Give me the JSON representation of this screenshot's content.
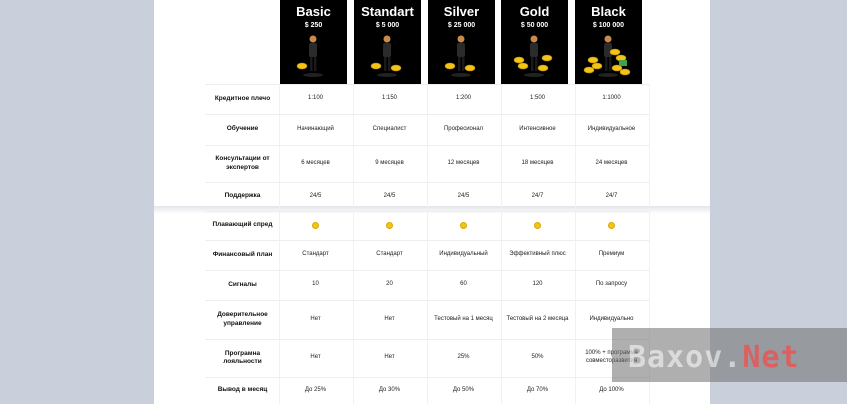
{
  "plans": [
    {
      "name": "Basic",
      "price": "$ 250"
    },
    {
      "name": "Standart",
      "price": "$ 5 000"
    },
    {
      "name": "Silver",
      "price": "$ 25 000"
    },
    {
      "name": "Gold",
      "price": "$ 50 000"
    },
    {
      "name": "Black",
      "price": "$ 100 000"
    }
  ],
  "rows": [
    {
      "label": "Кредитное плечо",
      "values": [
        "1:100",
        "1:150",
        "1:200",
        "1:500",
        "1:1000"
      ]
    },
    {
      "label": "Обучение",
      "values": [
        "Начинающий",
        "Специалист",
        "Професионал",
        "Интенсивное",
        "Индивидуальное"
      ]
    },
    {
      "label": "Консультации от экспертов",
      "values": [
        "6 месяцев",
        "9 месяцев",
        "12 месяцев",
        "18 месяцев",
        "24 месяцев"
      ]
    },
    {
      "label": "Поддержка",
      "values": [
        "24/5",
        "24/5",
        "24/5",
        "24/7",
        "24/7"
      ]
    },
    {
      "label": "Плавающий спред",
      "values": [
        "",
        "",
        "",
        "",
        ""
      ]
    },
    {
      "label": "Финансовый план",
      "values": [
        "Стандарт",
        "Стандарт",
        "Индивидуальный",
        "Эффективный плюс",
        "Премиум"
      ]
    },
    {
      "label": "Сигналы",
      "values": [
        "10",
        "20",
        "60",
        "120",
        "По запросу"
      ]
    },
    {
      "label": "Доверительное управление",
      "values": [
        "Нет",
        "Нет",
        "Тестовый на 1 месяц",
        "Тестовый на 2 месяца",
        "Индивидуально"
      ]
    },
    {
      "label": "Програмна лояльности",
      "values": [
        "Нет",
        "Нет",
        "25%",
        "50%",
        "100% + программа совместоразвития"
      ]
    },
    {
      "label": "Вывод в месяц",
      "values": [
        "До 25%",
        "До 30%",
        "До 50%",
        "До 70%",
        "До 100%"
      ]
    }
  ],
  "spread_icon": "yellow-dot-icon",
  "watermark": {
    "part1": "Baxov.",
    "part2": "Net"
  },
  "colors": {
    "plan_bg": "#000000",
    "dot": "#f2c417",
    "page_bg": "#c9d0db"
  }
}
